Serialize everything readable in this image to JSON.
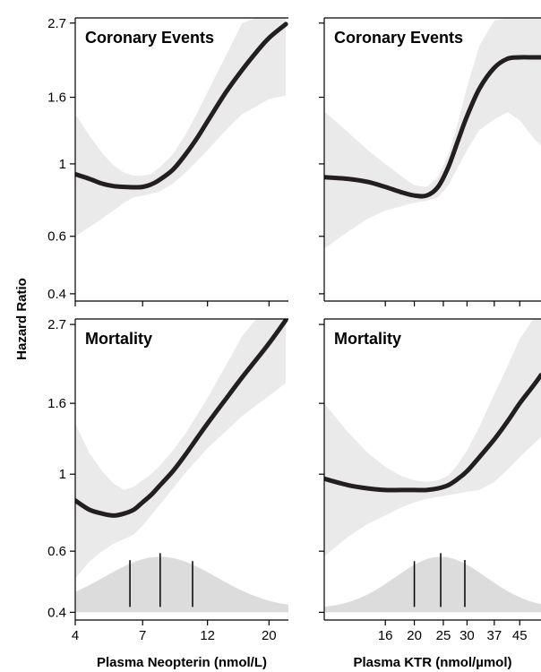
{
  "chart_data": {
    "type": "line",
    "ylabel": "Hazard Ratio",
    "y_scale": "log",
    "ylim": [
      0.38,
      2.8
    ],
    "yticks": [
      0.4,
      0.6,
      1,
      1.6,
      2.7
    ],
    "ytick_labels": [
      "0.4",
      "0.6",
      "1",
      "1.6",
      "2.7"
    ],
    "x_scale": "log",
    "grid": false,
    "columns": [
      {
        "xlabel": "Plasma Neopterin (nmol/L)",
        "xlim": [
          4,
          23.5
        ],
        "xticks": [
          4,
          7,
          12,
          20
        ],
        "xtick_labels": [
          "4",
          "7",
          "12",
          "20"
        ]
      },
      {
        "xlabel": "Plasma KTR (nmol/µmol)",
        "xlim": [
          10,
          53
        ],
        "xticks": [
          16,
          20,
          25,
          30,
          37,
          45
        ],
        "xtick_labels": [
          "16",
          "20",
          "25",
          "30",
          "37",
          "45"
        ]
      }
    ],
    "panels": [
      {
        "title": "Coronary Events",
        "column": 0,
        "row": 0,
        "x": [
          4,
          4.5,
          5,
          5.5,
          6,
          6.5,
          7,
          7.5,
          8,
          9,
          10,
          11,
          12,
          14,
          16,
          18,
          20,
          23
        ],
        "hr": [
          0.93,
          0.9,
          0.87,
          0.855,
          0.85,
          0.848,
          0.85,
          0.865,
          0.89,
          0.96,
          1.07,
          1.2,
          1.35,
          1.66,
          1.94,
          2.2,
          2.43,
          2.68
        ],
        "lower": [
          0.6,
          0.64,
          0.68,
          0.72,
          0.76,
          0.79,
          0.8,
          0.81,
          0.82,
          0.87,
          0.94,
          1.02,
          1.1,
          1.27,
          1.42,
          1.5,
          1.58,
          1.62
        ],
        "upper": [
          1.42,
          1.22,
          1.08,
          0.99,
          0.94,
          0.92,
          0.92,
          0.93,
          0.97,
          1.07,
          1.23,
          1.43,
          1.66,
          2.15,
          2.7,
          2.8,
          2.8,
          2.8
        ]
      },
      {
        "title": "Coronary Events",
        "column": 1,
        "row": 0,
        "x": [
          10,
          12,
          14,
          16,
          18,
          20,
          22,
          24,
          26,
          28,
          30,
          33,
          37,
          41,
          45,
          50,
          53
        ],
        "hr": [
          0.91,
          0.9,
          0.88,
          0.85,
          0.82,
          0.8,
          0.8,
          0.85,
          0.98,
          1.18,
          1.4,
          1.7,
          1.97,
          2.1,
          2.12,
          2.12,
          2.12
        ],
        "lower": [
          0.55,
          0.62,
          0.68,
          0.72,
          0.74,
          0.76,
          0.77,
          0.79,
          0.86,
          0.98,
          1.1,
          1.27,
          1.37,
          1.44,
          1.36,
          1.2,
          1.14
        ],
        "upper": [
          1.45,
          1.25,
          1.1,
          1.0,
          0.92,
          0.86,
          0.85,
          0.91,
          1.07,
          1.34,
          1.72,
          2.3,
          2.75,
          2.8,
          2.8,
          2.8,
          2.8
        ]
      },
      {
        "title": "Mortality",
        "column": 0,
        "row": 1,
        "x": [
          4,
          4.5,
          5,
          5.5,
          6,
          6.5,
          7,
          7.5,
          8,
          9,
          10,
          11,
          12,
          14,
          16,
          18,
          20,
          23
        ],
        "hr": [
          0.84,
          0.79,
          0.77,
          0.76,
          0.77,
          0.79,
          0.83,
          0.87,
          0.92,
          1.02,
          1.14,
          1.27,
          1.4,
          1.65,
          1.9,
          2.14,
          2.38,
          2.78
        ],
        "lower": [
          0.5,
          0.56,
          0.6,
          0.63,
          0.65,
          0.67,
          0.71,
          0.76,
          0.81,
          0.91,
          1.01,
          1.1,
          1.19,
          1.33,
          1.47,
          1.58,
          1.68,
          1.83
        ],
        "upper": [
          1.4,
          1.15,
          1.02,
          0.94,
          0.9,
          0.92,
          0.96,
          1.0,
          1.05,
          1.17,
          1.31,
          1.48,
          1.66,
          2.06,
          2.5,
          2.8,
          2.8,
          2.8
        ],
        "density_ticks": [
          6.3,
          8.1,
          10.6
        ]
      },
      {
        "title": "Mortality",
        "column": 1,
        "row": 1,
        "x": [
          10,
          12,
          14,
          16,
          18,
          20,
          22,
          24,
          26,
          28,
          30,
          33,
          37,
          41,
          45,
          50,
          53
        ],
        "hr": [
          0.97,
          0.93,
          0.91,
          0.9,
          0.9,
          0.9,
          0.9,
          0.91,
          0.93,
          0.97,
          1.02,
          1.12,
          1.26,
          1.42,
          1.6,
          1.8,
          1.93
        ],
        "lower": [
          0.58,
          0.66,
          0.72,
          0.76,
          0.8,
          0.83,
          0.85,
          0.86,
          0.87,
          0.88,
          0.89,
          0.9,
          0.95,
          1.03,
          1.12,
          1.22,
          1.28
        ],
        "upper": [
          1.6,
          1.32,
          1.15,
          1.05,
          0.99,
          0.96,
          0.95,
          0.96,
          0.99,
          1.07,
          1.17,
          1.37,
          1.7,
          2.05,
          2.45,
          2.8,
          2.8
        ],
        "density_ticks": [
          20,
          24.5,
          29.5
        ]
      }
    ]
  }
}
